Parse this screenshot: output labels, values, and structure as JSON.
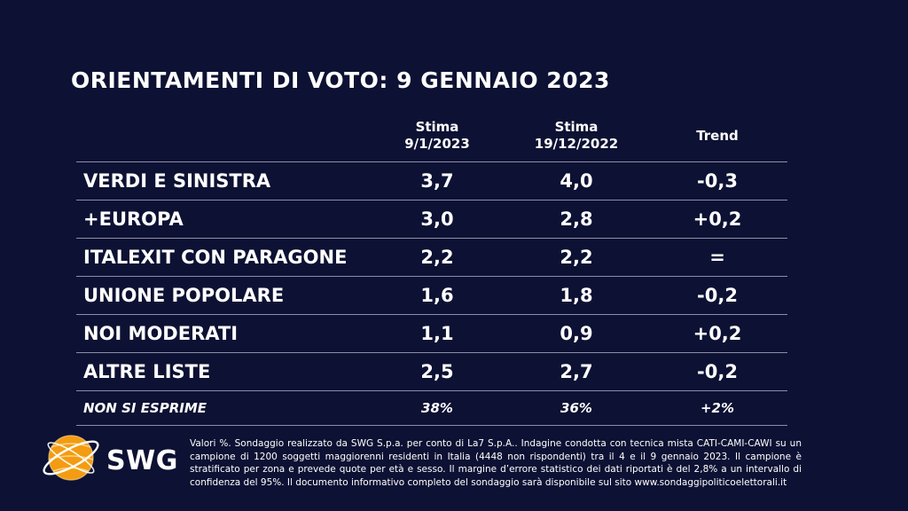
{
  "title": "ORIENTAMENTI DI VOTO: 9 GENNAIO 2023",
  "chart_data": {
    "type": "table",
    "columns": [
      {
        "line1": "Stima",
        "line2": "9/1/2023"
      },
      {
        "line1": "Stima",
        "line2": "19/12/2022"
      },
      {
        "line1": "Trend",
        "line2": ""
      }
    ],
    "rows": [
      {
        "label": "VERDI E SINISTRA",
        "values": [
          "3,7",
          "4,0",
          "-0,3"
        ]
      },
      {
        "label": "+EUROPA",
        "values": [
          "3,0",
          "2,8",
          "+0,2"
        ]
      },
      {
        "label": "ITALEXIT CON PARAGONE",
        "values": [
          "2,2",
          "2,2",
          "="
        ]
      },
      {
        "label": "UNIONE POPOLARE",
        "values": [
          "1,6",
          "1,8",
          "-0,2"
        ]
      },
      {
        "label": "NOI MODERATI",
        "values": [
          "1,1",
          "0,9",
          "+0,2"
        ]
      },
      {
        "label": "ALTRE LISTE",
        "values": [
          "2,5",
          "2,7",
          "-0,2"
        ]
      }
    ],
    "footer_row": {
      "label": "NON SI ESPRIME",
      "values": [
        "38%",
        "36%",
        "+2%"
      ]
    }
  },
  "logo": {
    "text": "SWG",
    "accent_color": "#f39c12"
  },
  "colors": {
    "background": "#0d1133",
    "text": "#ffffff",
    "rule": "#8a8fa8"
  },
  "footnote": "Valori %. Sondaggio realizzato da SWG S.p.a. per conto di La7 S.p.A.. Indagine condotta con tecnica mista CATI-CAMI-CAWI su un campione di 1200 soggetti maggiorenni residenti in Italia (4448 non rispondenti) tra il 4 e il 9 gennaio 2023. Il campione è stratificato per zona e prevede quote per età e sesso. Il margine d’errore statistico dei dati riportati è del 2,8% a un intervallo di confidenza del 95%. Il documento informativo completo del sondaggio sarà disponibile sul sito www.sondaggipoliticoelettorali.it"
}
